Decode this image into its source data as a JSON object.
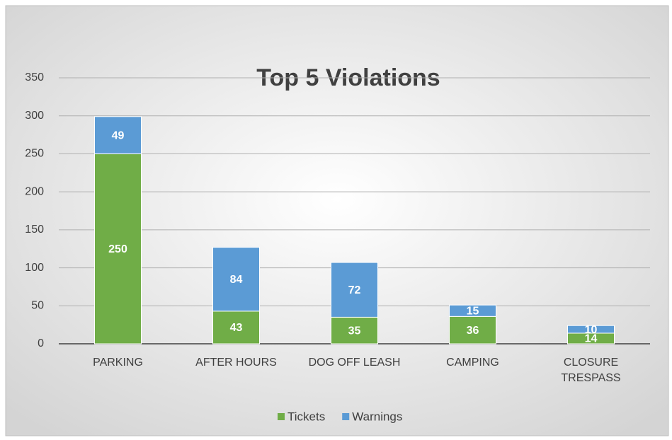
{
  "chart_data": {
    "type": "stacked_bar",
    "title": "Top 5 Violations",
    "categories": [
      "PARKING",
      "AFTER HOURS",
      "DOG OFF LEASH",
      "CAMPING",
      "CLOSURE TRESPASS"
    ],
    "series": [
      {
        "name": "Tickets",
        "color": "#70ad47",
        "values": [
          250,
          43,
          35,
          36,
          14
        ]
      },
      {
        "name": "Warnings",
        "color": "#5b9bd5",
        "values": [
          49,
          84,
          72,
          15,
          10
        ]
      }
    ],
    "ylim": [
      0,
      350
    ],
    "yticks": [
      0,
      50,
      100,
      150,
      200,
      250,
      300,
      350
    ],
    "grid": true,
    "legend": "bottom"
  }
}
